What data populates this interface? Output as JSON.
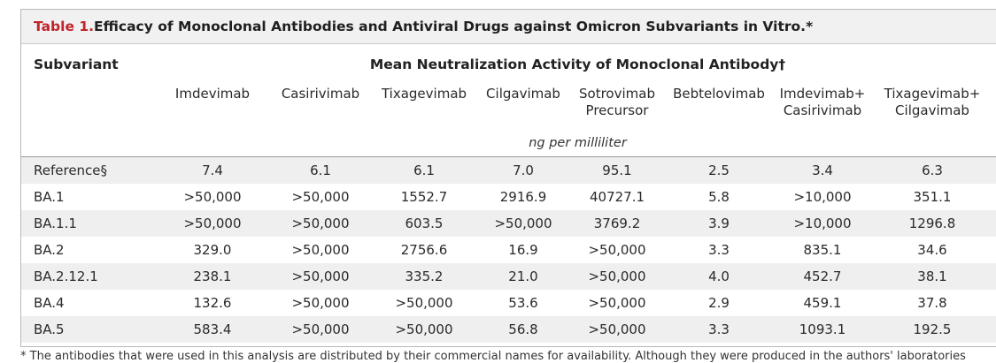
{
  "table": {
    "title_prefix": "Table 1.",
    "title_text": " Efficacy of Monoclonal Antibodies and Antiviral Drugs against Omicron Subvariants in Vitro.*",
    "subvariant_header": "Subvariant",
    "group_header": "Mean Neutralization Activity of Monoclonal Antibody†",
    "units": "ng per milliliter",
    "columns": [
      "Imdevimab",
      "Casirivimab",
      "Tixagevimab",
      "Cilgavimab",
      "Sotrovimab\nPrecursor",
      "Bebtelovimab",
      "Imdevimab+\nCasirivimab",
      "Tixagevimab+\nCilgavimab"
    ],
    "rows": [
      {
        "label": "Reference§",
        "values": [
          "7.4",
          "6.1",
          "6.1",
          "7.0",
          "95.1",
          "2.5",
          "3.4",
          "6.3"
        ]
      },
      {
        "label": "BA.1",
        "values": [
          ">50,000",
          ">50,000",
          "1552.7",
          "2916.9",
          "40727.1",
          "5.8",
          ">10,000",
          "351.1"
        ]
      },
      {
        "label": "BA.1.1",
        "values": [
          ">50,000",
          ">50,000",
          "603.5",
          ">50,000",
          "3769.2",
          "3.9",
          ">10,000",
          "1296.8"
        ]
      },
      {
        "label": "BA.2",
        "values": [
          "329.0",
          ">50,000",
          "2756.6",
          "16.9",
          ">50,000",
          "3.3",
          "835.1",
          "34.6"
        ]
      },
      {
        "label": "BA.2.12.1",
        "values": [
          "238.1",
          ">50,000",
          "335.2",
          "21.0",
          ">50,000",
          "4.0",
          "452.7",
          "38.1"
        ]
      },
      {
        "label": "BA.4",
        "values": [
          "132.6",
          ">50,000",
          ">50,000",
          "53.6",
          ">50,000",
          "2.9",
          "459.1",
          "37.8"
        ]
      },
      {
        "label": "BA.5",
        "values": [
          "583.4",
          ">50,000",
          ">50,000",
          "56.8",
          ">50,000",
          "3.3",
          "1093.1",
          "192.5"
        ]
      }
    ],
    "footnote": "* The antibodies that were used in this analysis are distributed by their commercial names for availability. Although they were produced in the authors' laboratories"
  }
}
